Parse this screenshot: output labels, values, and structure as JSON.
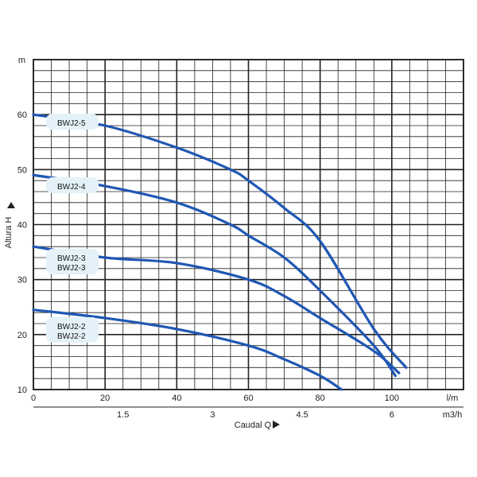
{
  "chart_data": {
    "type": "line",
    "title": "",
    "ylabel": "Altura H",
    "y_unit": "m",
    "xlabel_bottom": "Caudal Q",
    "x_unit_top": "l/m",
    "x_unit_bottom": "m3/h",
    "xlim": [
      0,
      120
    ],
    "ylim": [
      10,
      70
    ],
    "grid": true,
    "x_ticks": [
      "0",
      "20",
      "40",
      "60",
      "80",
      "100"
    ],
    "x_tick_values": [
      0,
      20,
      40,
      60,
      80,
      100
    ],
    "x2_ticks": [
      "1.5",
      "3",
      "4.5",
      "6"
    ],
    "x2_tick_values": [
      25,
      50,
      75,
      100
    ],
    "y_ticks": [
      "10",
      "20",
      "30",
      "40",
      "50",
      "60"
    ],
    "y_tick_values": [
      10,
      20,
      30,
      40,
      50,
      60
    ],
    "series": [
      {
        "name": "BWJ2-5",
        "labels": [
          "BWJ2-5"
        ],
        "x": [
          0,
          20,
          40,
          55,
          60,
          70,
          80,
          95,
          104
        ],
        "y": [
          60,
          58,
          54,
          50,
          48,
          43,
          37,
          21,
          14
        ]
      },
      {
        "name": "BWJ2-4",
        "labels": [
          "BWJ2-4"
        ],
        "x": [
          0,
          20,
          40,
          55,
          60,
          70,
          80,
          95,
          101
        ],
        "y": [
          49,
          47,
          44,
          40,
          38,
          34,
          28,
          18,
          12.5
        ]
      },
      {
        "name": "BWJ2-3",
        "labels": [
          "BWJ2-3",
          "BWJ2-3"
        ],
        "x": [
          0,
          20,
          40,
          60,
          70,
          80,
          95,
          102
        ],
        "y": [
          36,
          34,
          33,
          30,
          27,
          23,
          17,
          13
        ]
      },
      {
        "name": "BWJ2-2",
        "labels": [
          "BWJ2-2",
          "BWJ2-2"
        ],
        "x": [
          0,
          20,
          40,
          60,
          70,
          80,
          86
        ],
        "y": [
          24.5,
          23,
          21,
          18,
          15.5,
          12.5,
          10
        ]
      }
    ],
    "line_color": "#1f57b3"
  }
}
